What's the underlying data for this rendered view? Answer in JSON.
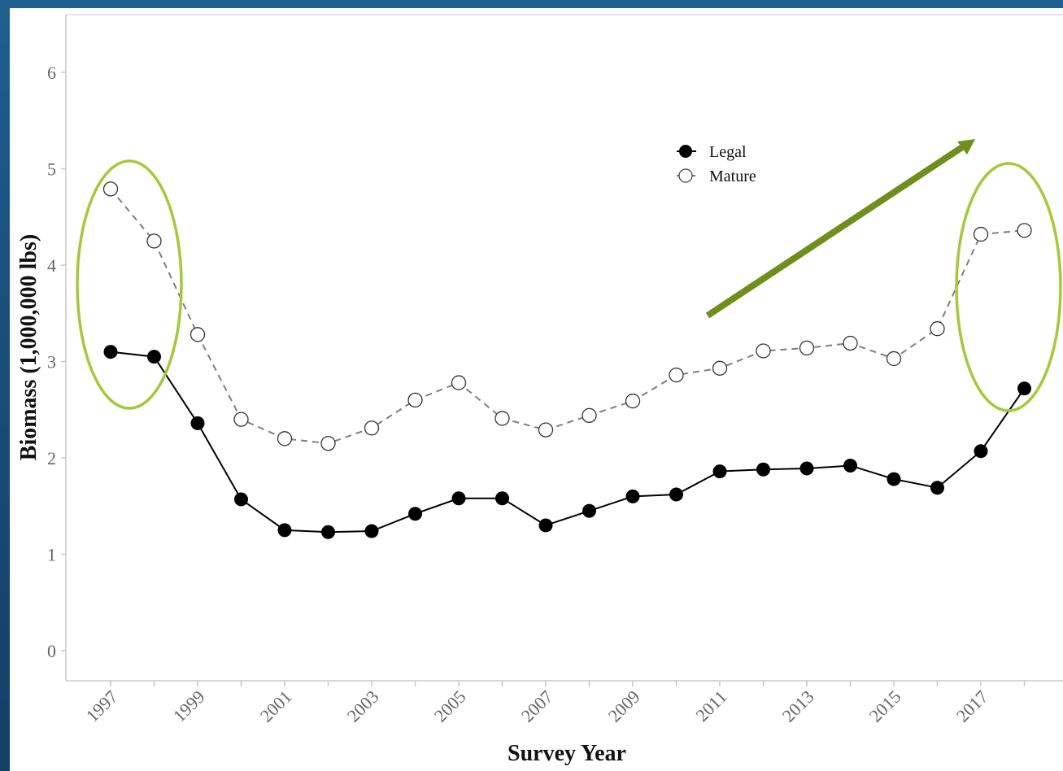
{
  "chart_data": {
    "type": "line",
    "title": "",
    "xlabel": "Survey Year",
    "ylabel": "Biomass (1,000,000 lbs)",
    "x": [
      1997,
      1998,
      1999,
      2000,
      2001,
      2002,
      2003,
      2004,
      2005,
      2006,
      2007,
      2008,
      2009,
      2010,
      2011,
      2012,
      2013,
      2014,
      2015,
      2016,
      2017,
      2018
    ],
    "x_ticks": [
      "1997",
      "1999",
      "2001",
      "2003",
      "2005",
      "2007",
      "2009",
      "2011",
      "2013",
      "2015",
      "2017"
    ],
    "y_ticks": [
      "0",
      "1",
      "2",
      "3",
      "4",
      "5",
      "6"
    ],
    "ylim": [
      0,
      6.5
    ],
    "grid": false,
    "legend_position": "top-center",
    "series": [
      {
        "name": "Legal",
        "style": "solid line, filled black circles",
        "color": "#000000",
        "values": [
          3.1,
          3.05,
          2.36,
          1.57,
          1.25,
          1.23,
          1.24,
          1.42,
          1.58,
          1.58,
          1.3,
          1.45,
          1.6,
          1.62,
          1.86,
          1.88,
          1.89,
          1.92,
          1.78,
          1.69,
          2.07,
          2.72
        ]
      },
      {
        "name": "Mature",
        "style": "dashed gray line, open circles",
        "color": "#7f7f7f",
        "values": [
          4.79,
          4.25,
          3.28,
          2.4,
          2.2,
          2.15,
          2.31,
          2.6,
          2.78,
          2.41,
          2.29,
          2.44,
          2.59,
          2.86,
          2.93,
          3.11,
          3.14,
          3.19,
          3.03,
          3.34,
          4.32,
          4.36
        ]
      }
    ],
    "annotations": [
      {
        "type": "ellipse",
        "color": "#a4c93a",
        "around_years": [
          1997,
          1998
        ]
      },
      {
        "type": "ellipse",
        "color": "#a4c93a",
        "around_years": [
          2017,
          2018
        ]
      },
      {
        "type": "arrow",
        "color": "#6e8f1c",
        "meaning": "increasing trend"
      }
    ]
  }
}
